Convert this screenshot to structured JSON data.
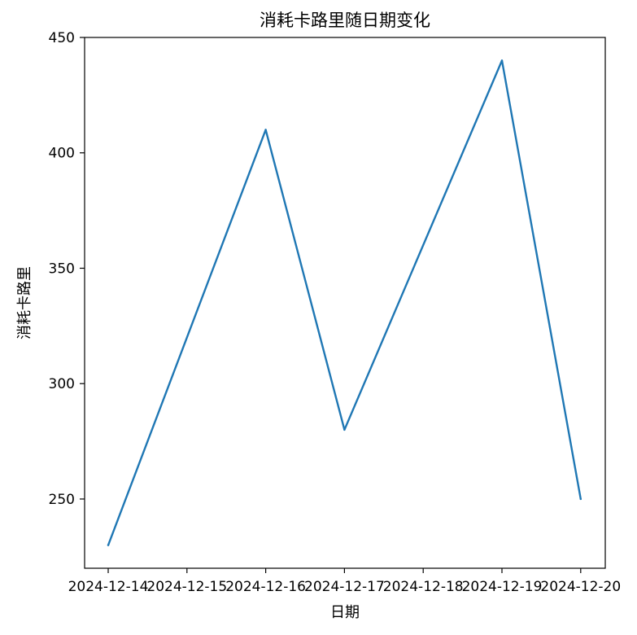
{
  "chart_data": {
    "type": "line",
    "title": "消耗卡路里随日期变化",
    "xlabel": "日期",
    "ylabel": "消耗卡路里",
    "x_ticks": [
      "2024-12-14",
      "2024-12-15",
      "2024-12-16",
      "2024-12-17",
      "2024-12-18",
      "2024-12-19",
      "2024-12-20"
    ],
    "y_ticks": [
      250,
      300,
      350,
      400,
      450
    ],
    "ylim": [
      220,
      450
    ],
    "grid": false,
    "series": [
      {
        "color": "#1f77b4",
        "x": [
          "2024-12-14",
          "2024-12-16",
          "2024-12-17",
          "2024-12-19",
          "2024-12-20"
        ],
        "values": [
          230,
          410,
          280,
          440,
          250
        ]
      }
    ]
  }
}
